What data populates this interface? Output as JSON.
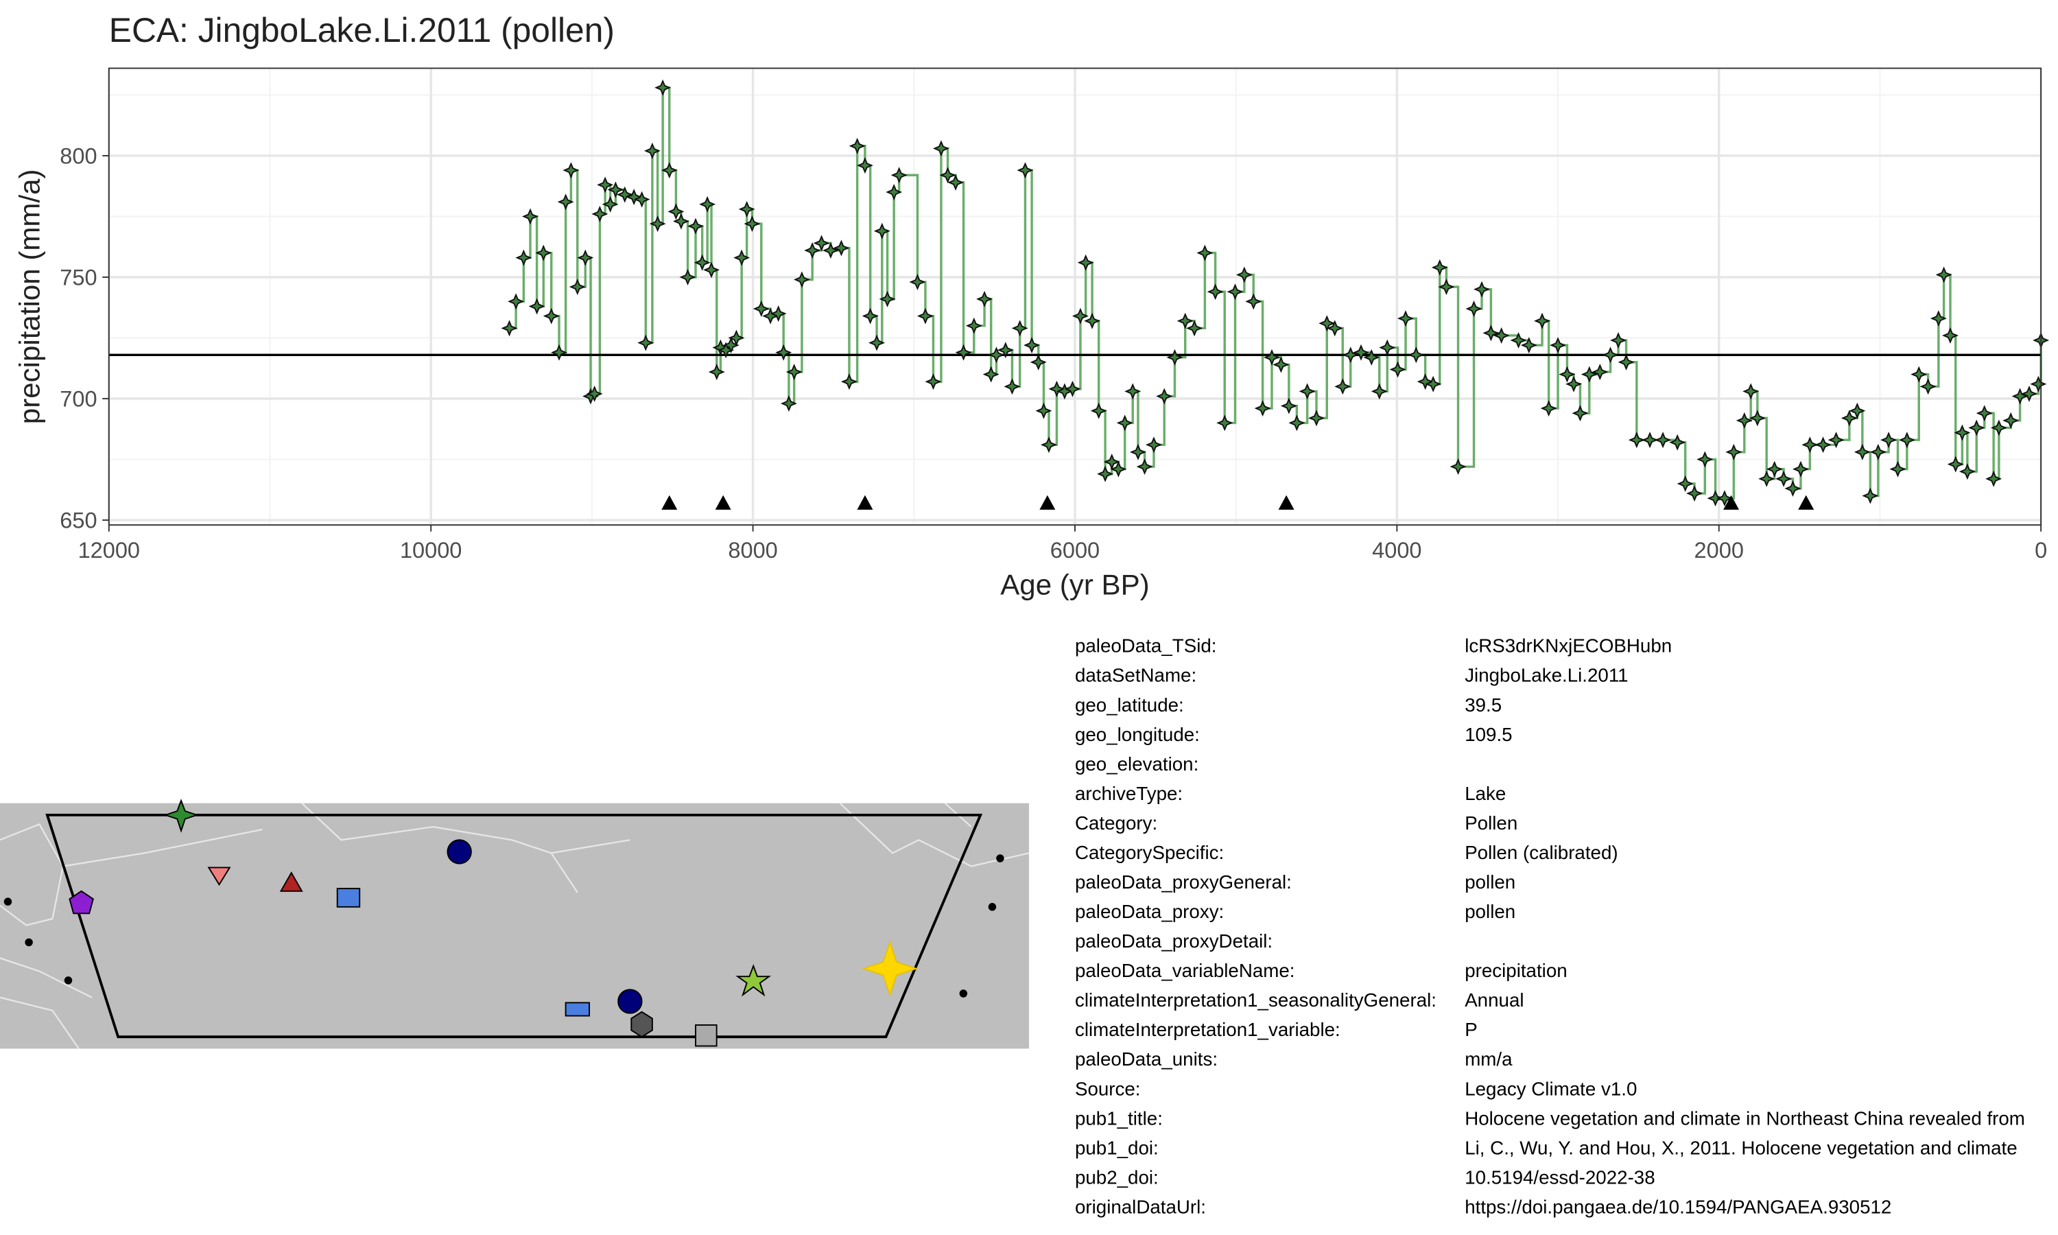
{
  "chart_data": {
    "type": "line",
    "title": "ECA: JingboLake.Li.2011 (pollen)",
    "x_label": "Age (yr BP)",
    "y_label": "precipitation (mm/a)",
    "x": [
      9513,
      9472,
      9424,
      9383,
      9342,
      9301,
      9252,
      9204,
      9163,
      9130,
      9090,
      9041,
      9008,
      8984,
      8951,
      8918,
      8886,
      8853,
      8796,
      8739,
      8690,
      8666,
      8625,
      8592,
      8560,
      8519,
      8478,
      8446,
      8405,
      8356,
      8315,
      8283,
      8258,
      8225,
      8201,
      8168,
      8136,
      8103,
      8070,
      8038,
      8005,
      7948,
      7891,
      7842,
      7810,
      7777,
      7744,
      7696,
      7631,
      7574,
      7517,
      7451,
      7402,
      7352,
      7304,
      7271,
      7231,
      7198,
      7165,
      7124,
      7092,
      6978,
      6929,
      6880,
      6831,
      6790,
      6741,
      6692,
      6627,
      6562,
      6521,
      6488,
      6431,
      6390,
      6342,
      6309,
      6268,
      6227,
      6194,
      6162,
      6113,
      6064,
      6015,
      5966,
      5933,
      5893,
      5852,
      5812,
      5771,
      5730,
      5690,
      5641,
      5608,
      5567,
      5510,
      5445,
      5380,
      5315,
      5258,
      5193,
      5128,
      5070,
      5005,
      4948,
      4891,
      4834,
      4777,
      4720,
      4671,
      4622,
      4557,
      4500,
      4435,
      4386,
      4337,
      4288,
      4223,
      4158,
      4109,
      4060,
      3995,
      3946,
      3881,
      3824,
      3775,
      3734,
      3693,
      3620,
      3522,
      3473,
      3416,
      3351,
      3245,
      3180,
      3098,
      3057,
      3000,
      2943,
      2902,
      2862,
      2805,
      2739,
      2674,
      2625,
      2576,
      2511,
      2429,
      2348,
      2258,
      2209,
      2152,
      2087,
      2022,
      1965,
      1908,
      1842,
      1802,
      1761,
      1704,
      1655,
      1598,
      1541,
      1492,
      1435,
      1353,
      1272,
      1190,
      1141,
      1109,
      1060,
      1011,
      946,
      889,
      832,
      758,
      701,
      636,
      603,
      563,
      530,
      489,
      457,
      400,
      351,
      294,
      261,
      187,
      130,
      73,
      16,
      0
    ],
    "series": [
      {
        "name": "precipitation",
        "color": "#5aa55a",
        "values": [
          729,
          740,
          758,
          775,
          738,
          760,
          734,
          719,
          781,
          794,
          746,
          758,
          701,
          702,
          776,
          788,
          780,
          786,
          784,
          783,
          782,
          723,
          802,
          772,
          828,
          794,
          777,
          773,
          750,
          771,
          756,
          780,
          753,
          711,
          721,
          720,
          722,
          725,
          758,
          778,
          772,
          737,
          734,
          735,
          719,
          698,
          711,
          749,
          761,
          764,
          761,
          762,
          707,
          804,
          796,
          734,
          723,
          769,
          741,
          785,
          792,
          748,
          734,
          707,
          803,
          792,
          789,
          719,
          730,
          741,
          710,
          718,
          720,
          705,
          729,
          794,
          722,
          715,
          695,
          681,
          704,
          703,
          704,
          734,
          756,
          732,
          695,
          669,
          674,
          671,
          690,
          703,
          678,
          672,
          681,
          701,
          717,
          732,
          729,
          760,
          744,
          690,
          744,
          751,
          740,
          696,
          717,
          714,
          697,
          690,
          703,
          692,
          731,
          729,
          705,
          718,
          719,
          717,
          703,
          721,
          712,
          733,
          718,
          707,
          706,
          754,
          746,
          672,
          737,
          745,
          727,
          726,
          724,
          722,
          732,
          696,
          722,
          710,
          706,
          694,
          710,
          711,
          718,
          724,
          715,
          683,
          683,
          683,
          682,
          665,
          661,
          675,
          659,
          659,
          678,
          691,
          703,
          692,
          667,
          671,
          667,
          663,
          671,
          681,
          681,
          683,
          692,
          695,
          678,
          660,
          678,
          683,
          671,
          683,
          710,
          705,
          733,
          751,
          726,
          673,
          686,
          670,
          688,
          694,
          667,
          688,
          691,
          701,
          702,
          706,
          724
        ]
      }
    ],
    "mean_line": 718,
    "control_points": {
      "x": [
        8519,
        8185,
        7304,
        6171,
        4687,
        1924,
        1459
      ],
      "values": [
        657,
        657,
        657,
        657,
        657,
        657,
        657
      ]
    },
    "xlim": [
      12000,
      0
    ],
    "ylim": [
      648,
      836
    ],
    "xticks": [
      12000,
      10000,
      8000,
      6000,
      4000,
      2000,
      0
    ],
    "yticks": [
      650,
      700,
      750,
      800
    ],
    "minor_xticks": [
      11000,
      9000,
      7000,
      5000,
      3000,
      1000
    ],
    "minor_yticks": [
      675,
      725,
      775,
      825
    ],
    "grid": true
  },
  "metadata": [
    {
      "key": "paleoData_TSid:",
      "value": "lcRS3drKNxjECOBHubn"
    },
    {
      "key": "dataSetName:",
      "value": "JingboLake.Li.2011"
    },
    {
      "key": "geo_latitude:",
      "value": "39.5"
    },
    {
      "key": "geo_longitude:",
      "value": "109.5"
    },
    {
      "key": "geo_elevation:"
    },
    {
      "key": "archiveType:",
      "value": "Lake"
    },
    {
      "key": "Category:",
      "value": "Pollen"
    },
    {
      "key": "CategorySpecific:",
      "value": "Pollen (calibrated)"
    },
    {
      "key": "paleoData_proxyGeneral:",
      "value": "pollen"
    },
    {
      "key": "paleoData_proxy:",
      "value": "pollen"
    },
    {
      "key": "paleoData_proxyDetail:"
    },
    {
      "key": "paleoData_variableName:",
      "value": "precipitation"
    },
    {
      "key": "climateInterpretation1_seasonalityGeneral:",
      "value": "Annual"
    },
    {
      "key": "climateInterpretation1_variable:",
      "value": "P"
    },
    {
      "key": "paleoData_units:",
      "value": "mm/a"
    },
    {
      "key": "Source:",
      "value": "Legacy Climate v1.0"
    },
    {
      "key": "pub1_title:",
      "value": "Holocene vegetation and climate in Northeast China revealed from"
    },
    {
      "key": "pub1_doi:",
      "value": "Li, C., Wu, Y. and Hou, X., 2011. Holocene vegetation and climate"
    },
    {
      "key": "pub2_doi:",
      "value": "10.5194/essd-2022-38"
    },
    {
      "key": "originalDataUrl:",
      "value": "https://doi.pangaea.de/10.1594/PANGAEA.930512"
    }
  ]
}
